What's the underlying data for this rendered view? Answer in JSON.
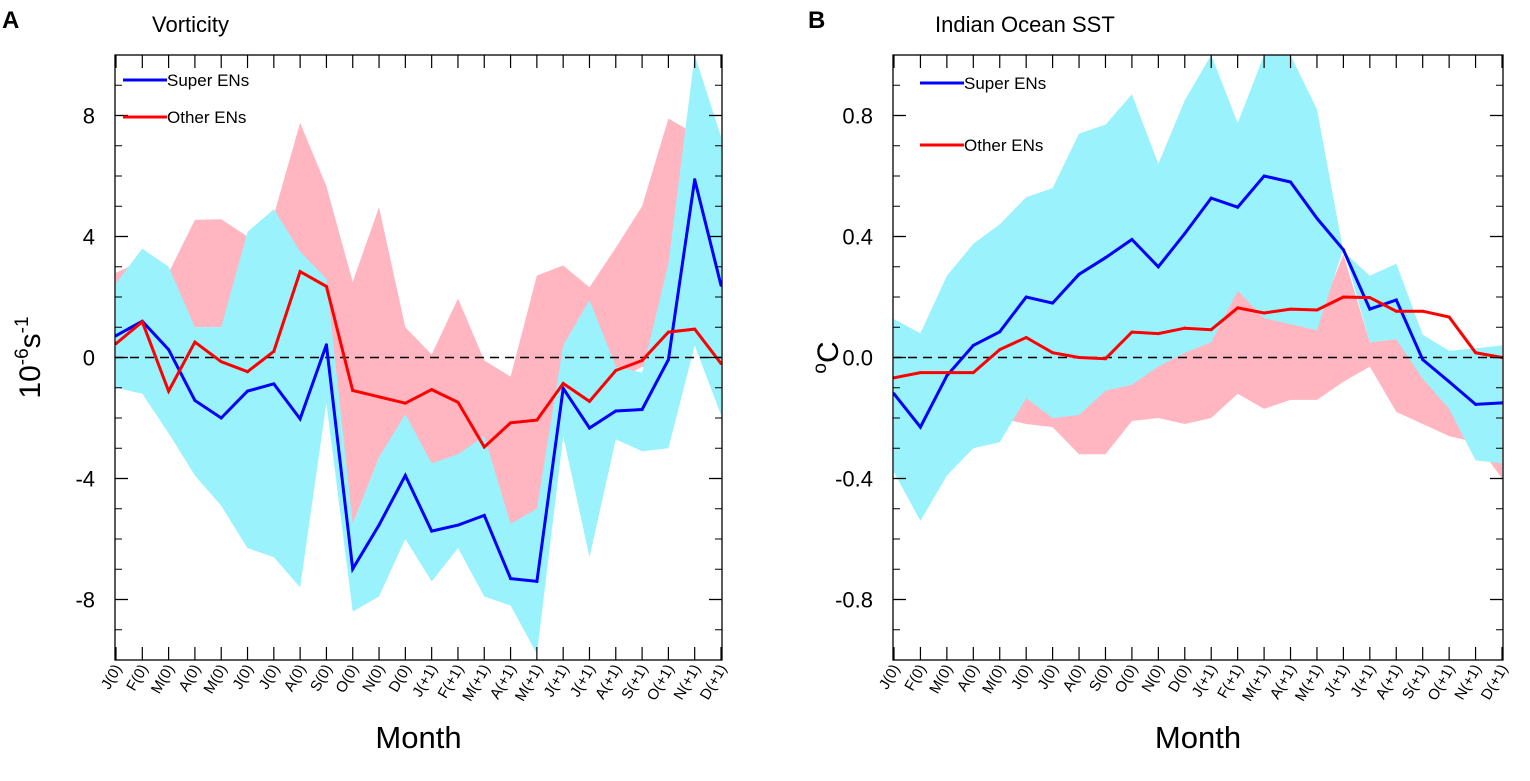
{
  "chart_data": [
    {
      "type": "line",
      "panel_label": "A",
      "title": "Vorticity",
      "xlabel": "Month",
      "ylabel": {
        "base": "10",
        "exp1": "-6",
        "unit": "s",
        "exp2": "-1"
      },
      "ylim": [
        -10,
        10
      ],
      "yticks": [
        8,
        4,
        0,
        -4,
        -8
      ],
      "ytick_labels": [
        "8",
        "4",
        "0",
        "-4",
        "-8"
      ],
      "minor_step": 1,
      "zero_line": "dashed",
      "categories": [
        "J(0)",
        "F(0)",
        "M(0)",
        "A(0)",
        "M(0)",
        "J(0)",
        "J(0)",
        "A(0)",
        "S(0)",
        "O(0)",
        "N(0)",
        "D(0)",
        "J(+1)",
        "F(+1)",
        "M(+1)",
        "A(+1)",
        "M(+1)",
        "J(+1)",
        "J(+1)",
        "A(+1)",
        "S(+1)",
        "O(+1)",
        "N(+1)",
        "D(+1)"
      ],
      "legend": {
        "placement": "top-left"
      },
      "series": [
        {
          "name": "Super ENs",
          "color": "#0000ff",
          "band_color": "#99f2fc",
          "values": [
            0.72,
            1.2,
            0.26,
            -1.42,
            -2.0,
            -1.11,
            -0.87,
            -2.03,
            0.42,
            -6.99,
            -5.54,
            -3.9,
            -5.74,
            -5.54,
            -5.22,
            -7.31,
            -7.4,
            -1.02,
            -2.33,
            -1.77,
            -1.72,
            -0.07,
            5.88,
            2.39
          ],
          "band_upper": [
            2.45,
            3.6,
            3.0,
            1.0,
            1.0,
            4.15,
            4.9,
            3.5,
            2.6,
            -5.5,
            -3.3,
            -1.87,
            -3.5,
            -3.2,
            -2.6,
            -5.5,
            -5.0,
            0.4,
            1.9,
            -0.3,
            -0.5,
            3.1,
            10.0,
            7.3
          ],
          "band_lower": [
            -1.0,
            -1.2,
            -2.5,
            -3.9,
            -4.9,
            -6.3,
            -6.6,
            -7.6,
            -1.5,
            -8.4,
            -7.9,
            -6.0,
            -7.4,
            -6.3,
            -7.9,
            -8.2,
            -9.8,
            -2.6,
            -6.6,
            -2.7,
            -3.1,
            -3.0,
            0.4,
            -1.9
          ]
        },
        {
          "name": "Other ENs",
          "color": "#ff0000",
          "band_color": "#ffb6c1",
          "values": [
            0.46,
            1.18,
            -1.11,
            0.51,
            -0.14,
            -0.47,
            0.2,
            2.84,
            2.35,
            -1.09,
            -1.3,
            -1.51,
            -1.06,
            -1.48,
            -2.96,
            -2.16,
            -2.07,
            -0.86,
            -1.45,
            -0.43,
            -0.1,
            0.84,
            0.94,
            -0.2
          ],
          "band_upper": [
            2.8,
            3.2,
            2.8,
            4.55,
            4.57,
            4.0,
            4.7,
            7.76,
            5.66,
            2.5,
            4.97,
            1.0,
            0.1,
            1.95,
            -0.1,
            -0.63,
            2.71,
            3.04,
            2.32,
            3.63,
            5.0,
            7.9,
            7.4,
            5.0
          ],
          "band_lower": [
            -0.5,
            -0.5,
            -1.0,
            1.0,
            1.0,
            -1.0,
            -0.8,
            -1.0,
            -1.5,
            -5.5,
            -3.3,
            -3.0,
            -4.0,
            -4.8,
            -2.6,
            -6.4,
            -5.1,
            -2.5,
            -2.0,
            -0.8,
            -0.3,
            -0.5,
            0.5,
            0.0
          ]
        }
      ]
    },
    {
      "type": "line",
      "panel_label": "B",
      "title": "Indian Ocean SST",
      "xlabel": "Month",
      "ylabel": {
        "base": "",
        "exp1": "o",
        "unit": "C",
        "exp2": ""
      },
      "ylim": [
        -1.0,
        1.0
      ],
      "yticks": [
        0.8,
        0.4,
        0.0,
        -0.4,
        -0.8
      ],
      "ytick_labels": [
        "0.8",
        "0.4",
        "0.0",
        "-0.4",
        "-0.8"
      ],
      "minor_step": 0.1,
      "zero_line": "dashed",
      "categories": [
        "J(0)",
        "F(0)",
        "M(0)",
        "A(0)",
        "M(0)",
        "J(0)",
        "J(0)",
        "A(0)",
        "S(0)",
        "O(0)",
        "N(0)",
        "D(0)",
        "J(+1)",
        "F(+1)",
        "M(+1)",
        "A(+1)",
        "M(+1)",
        "J(+1)",
        "J(+1)",
        "A(+1)",
        "S(+1)",
        "O(+1)",
        "N(+1)",
        "D(+1)"
      ],
      "legend": {
        "placement": "top-left"
      },
      "series": [
        {
          "name": "Super ENs",
          "color": "#0000ff",
          "band_color": "#99f2fc",
          "values": [
            -0.12,
            -0.23,
            -0.06,
            0.04,
            0.085,
            0.2,
            0.18,
            0.275,
            0.33,
            0.39,
            0.3,
            0.41,
            0.527,
            0.497,
            0.6,
            0.58,
            0.46,
            0.356,
            0.16,
            0.19,
            -0.007,
            -0.08,
            -0.155,
            -0.15
          ],
          "band_upper": [
            0.127,
            0.08,
            0.27,
            0.376,
            0.44,
            0.53,
            0.56,
            0.74,
            0.77,
            0.87,
            0.64,
            0.85,
            1.0,
            0.775,
            1.0,
            1.0,
            0.82,
            0.35,
            0.27,
            0.31,
            0.075,
            0.022,
            0.03,
            0.04
          ],
          "band_lower": [
            -0.38,
            -0.54,
            -0.39,
            -0.3,
            -0.28,
            -0.135,
            -0.2,
            -0.19,
            -0.11,
            -0.09,
            -0.03,
            0.016,
            0.05,
            0.22,
            0.13,
            0.11,
            0.09,
            0.36,
            0.05,
            0.06,
            -0.07,
            -0.17,
            -0.34,
            -0.35
          ]
        },
        {
          "name": "Other ENs",
          "color": "#ff0000",
          "band_color": "#ffb6c1",
          "values": [
            -0.067,
            -0.05,
            -0.05,
            -0.05,
            0.026,
            0.066,
            0.016,
            0.0,
            -0.004,
            0.084,
            0.079,
            0.097,
            0.092,
            0.164,
            0.147,
            0.16,
            0.157,
            0.2,
            0.198,
            0.153,
            0.153,
            0.134,
            0.016,
            0.0
          ],
          "band_upper": [
            0.05,
            0.05,
            0.05,
            0.1,
            0.15,
            0.2,
            0.15,
            0.1,
            0.1,
            0.15,
            0.15,
            0.15,
            0.1,
            0.23,
            0.14,
            0.13,
            0.12,
            0.34,
            0.05,
            0.06,
            0.0,
            -0.08,
            -0.2,
            -0.33
          ],
          "band_lower": [
            -0.3,
            -0.3,
            -0.25,
            -0.2,
            -0.2,
            -0.22,
            -0.23,
            -0.32,
            -0.32,
            -0.21,
            -0.2,
            -0.22,
            -0.2,
            -0.12,
            -0.17,
            -0.14,
            -0.14,
            -0.08,
            -0.03,
            -0.18,
            -0.22,
            -0.26,
            -0.28,
            -0.4
          ]
        }
      ]
    }
  ]
}
